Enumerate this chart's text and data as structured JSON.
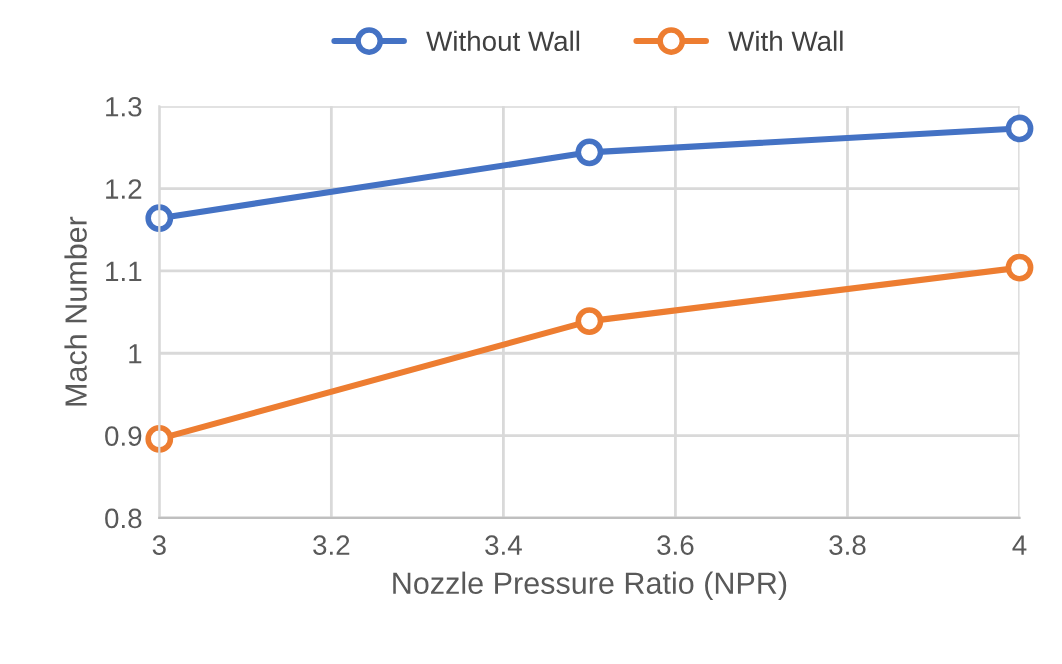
{
  "chart_data": {
    "type": "line",
    "xlabel": "Nozzle Pressure Ratio (NPR)",
    "ylabel": "Mach Number",
    "x": [
      3,
      3.5,
      4
    ],
    "series": [
      {
        "name": "Without Wall",
        "color": "#4472c4",
        "values": [
          1.164,
          1.244,
          1.273
        ]
      },
      {
        "name": "With Wall",
        "color": "#ed7d31",
        "values": [
          0.896,
          1.039,
          1.104
        ]
      }
    ],
    "xlim": [
      3,
      4
    ],
    "xticks": [
      3,
      3.2,
      3.4,
      3.6,
      3.8,
      4
    ],
    "ylim": [
      0.8,
      1.3
    ],
    "yticks": [
      0.8,
      0.9,
      1,
      1.1,
      1.2,
      1.3
    ],
    "grid": true,
    "legend": "top",
    "marker": "circle",
    "line_style": "solid"
  }
}
